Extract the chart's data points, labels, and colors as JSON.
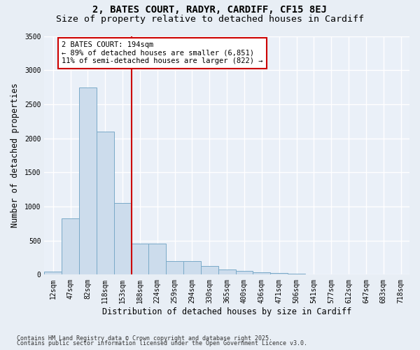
{
  "title1": "2, BATES COURT, RADYR, CARDIFF, CF15 8EJ",
  "title2": "Size of property relative to detached houses in Cardiff",
  "xlabel": "Distribution of detached houses by size in Cardiff",
  "ylabel": "Number of detached properties",
  "bar_color": "#ccdcec",
  "bar_edge_color": "#7aaac8",
  "categories": [
    "12sqm",
    "47sqm",
    "82sqm",
    "118sqm",
    "153sqm",
    "188sqm",
    "224sqm",
    "259sqm",
    "294sqm",
    "330sqm",
    "365sqm",
    "400sqm",
    "436sqm",
    "471sqm",
    "506sqm",
    "541sqm",
    "577sqm",
    "612sqm",
    "647sqm",
    "683sqm",
    "718sqm"
  ],
  "values": [
    50,
    830,
    2750,
    2100,
    1050,
    460,
    460,
    200,
    200,
    130,
    80,
    55,
    40,
    30,
    15,
    8,
    5,
    3,
    3,
    3,
    3
  ],
  "ylim": [
    0,
    3500
  ],
  "yticks": [
    0,
    500,
    1000,
    1500,
    2000,
    2500,
    3000,
    3500
  ],
  "vline_index": 5,
  "vline_color": "#cc0000",
  "annotation_text": "2 BATES COURT: 194sqm\n← 89% of detached houses are smaller (6,851)\n11% of semi-detached houses are larger (822) →",
  "annotation_box_color": "#ffffff",
  "annotation_box_edge": "#cc0000",
  "footnote1": "Contains HM Land Registry data © Crown copyright and database right 2025.",
  "footnote2": "Contains public sector information licensed under the Open Government Licence v3.0.",
  "bg_color": "#e8eef5",
  "plot_bg_color": "#eaf0f8",
  "grid_color": "#ffffff",
  "title_fontsize": 10,
  "subtitle_fontsize": 9.5,
  "tick_fontsize": 7,
  "label_fontsize": 8.5,
  "annot_fontsize": 7.5,
  "footnote_fontsize": 6
}
